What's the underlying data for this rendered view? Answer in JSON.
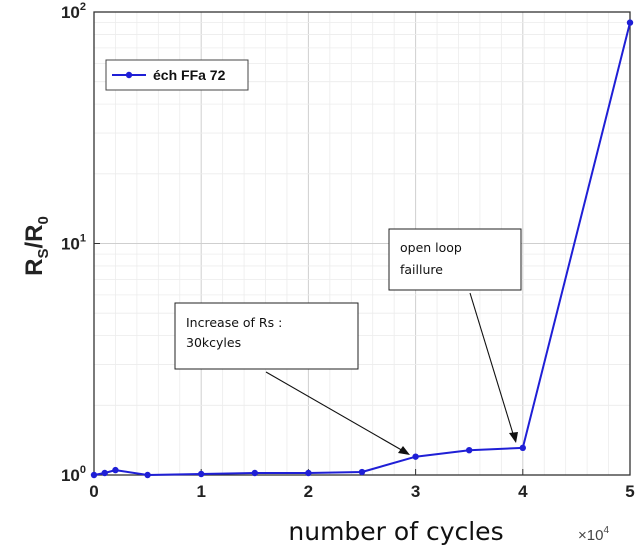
{
  "chart_data": {
    "type": "line",
    "yscale": "log",
    "grid": true,
    "xlabel": "number of cycles",
    "x_multiplier": "×10",
    "x_multiplier_exp": "4",
    "ylabel": {
      "main": "R",
      "sub1": "S",
      "sep": "/R",
      "sub2": "0"
    },
    "xlim": [
      0,
      50000
    ],
    "ylim": [
      1,
      100
    ],
    "x_ticks": [
      {
        "v": 0,
        "label": "0"
      },
      {
        "v": 10000,
        "label": "1"
      },
      {
        "v": 20000,
        "label": "2"
      },
      {
        "v": 30000,
        "label": "3"
      },
      {
        "v": 40000,
        "label": "4"
      },
      {
        "v": 50000,
        "label": "5"
      }
    ],
    "y_ticks": [
      {
        "v": 1,
        "base": "10",
        "exp": "0"
      },
      {
        "v": 10,
        "base": "10",
        "exp": "1"
      },
      {
        "v": 100,
        "base": "10",
        "exp": "2"
      }
    ],
    "legend_position": "top-left",
    "series": [
      {
        "name": "éch FFa 72",
        "color": "#1f1fd6",
        "x": [
          0,
          1000,
          2000,
          5000,
          10000,
          15000,
          20000,
          25000,
          30000,
          35000,
          40000,
          50000
        ],
        "y": [
          1.0,
          1.02,
          1.05,
          1.0,
          1.01,
          1.02,
          1.02,
          1.03,
          1.2,
          1.28,
          1.31,
          90
        ]
      }
    ],
    "annotations": [
      {
        "lines": [
          "Increase of Rs :",
          "30kcyles"
        ],
        "x": 30000,
        "y": 1.2
      },
      {
        "lines": [
          "open loop",
          "faillure"
        ],
        "x": 40000,
        "y": 1.31
      }
    ]
  }
}
